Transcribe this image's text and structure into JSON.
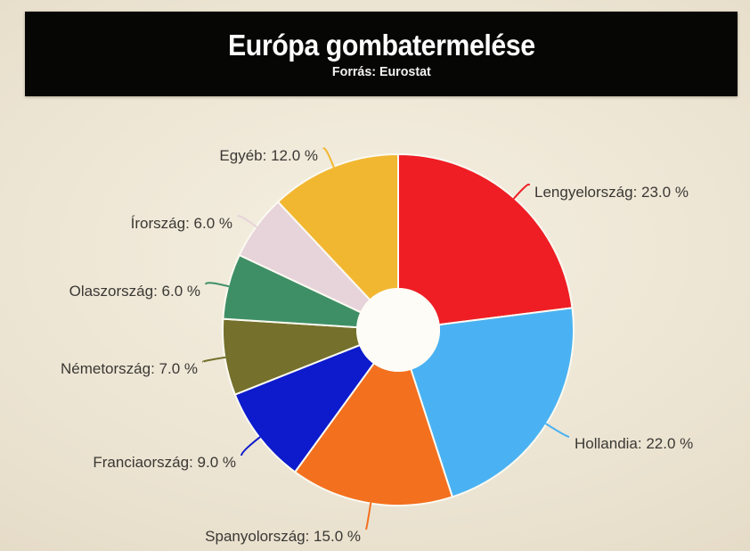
{
  "header": {
    "title": "Európa gombatermelése",
    "subtitle": "Forrás: Eurostat"
  },
  "colors": {
    "background_center": "#f4efe1",
    "background_edge": "#d8cdb6",
    "header_bg": "#060605",
    "header_text": "#fdfdfd",
    "label_text": "#3a3834",
    "slice_border": "#fbfaf2",
    "donut_hole": "#fdfcf6"
  },
  "chart_data": {
    "type": "pie",
    "title": "Európa gombatermelése",
    "subtitle": "Forrás: Eurostat",
    "donut": true,
    "start_angle_deg": 0,
    "direction": "clockwise",
    "unit": "%",
    "label_format": "{label}: {value} %",
    "legend_position": "none",
    "slices": [
      {
        "label": "Lengyelország",
        "value": 23.0,
        "color": "#ee1e24"
      },
      {
        "label": "Hollandia",
        "value": 22.0,
        "color": "#4ab2f2"
      },
      {
        "label": "Spanyolország",
        "value": 15.0,
        "color": "#f3701e"
      },
      {
        "label": "Franciaország",
        "value": 9.0,
        "color": "#0d1bcd"
      },
      {
        "label": "Németország",
        "value": 7.0,
        "color": "#75702b"
      },
      {
        "label": "Olaszország",
        "value": 6.0,
        "color": "#3e8f66"
      },
      {
        "label": "Írország",
        "value": 6.0,
        "color": "#e7d3da"
      },
      {
        "label": "Egyéb",
        "value": 12.0,
        "color": "#f2b731"
      }
    ]
  }
}
